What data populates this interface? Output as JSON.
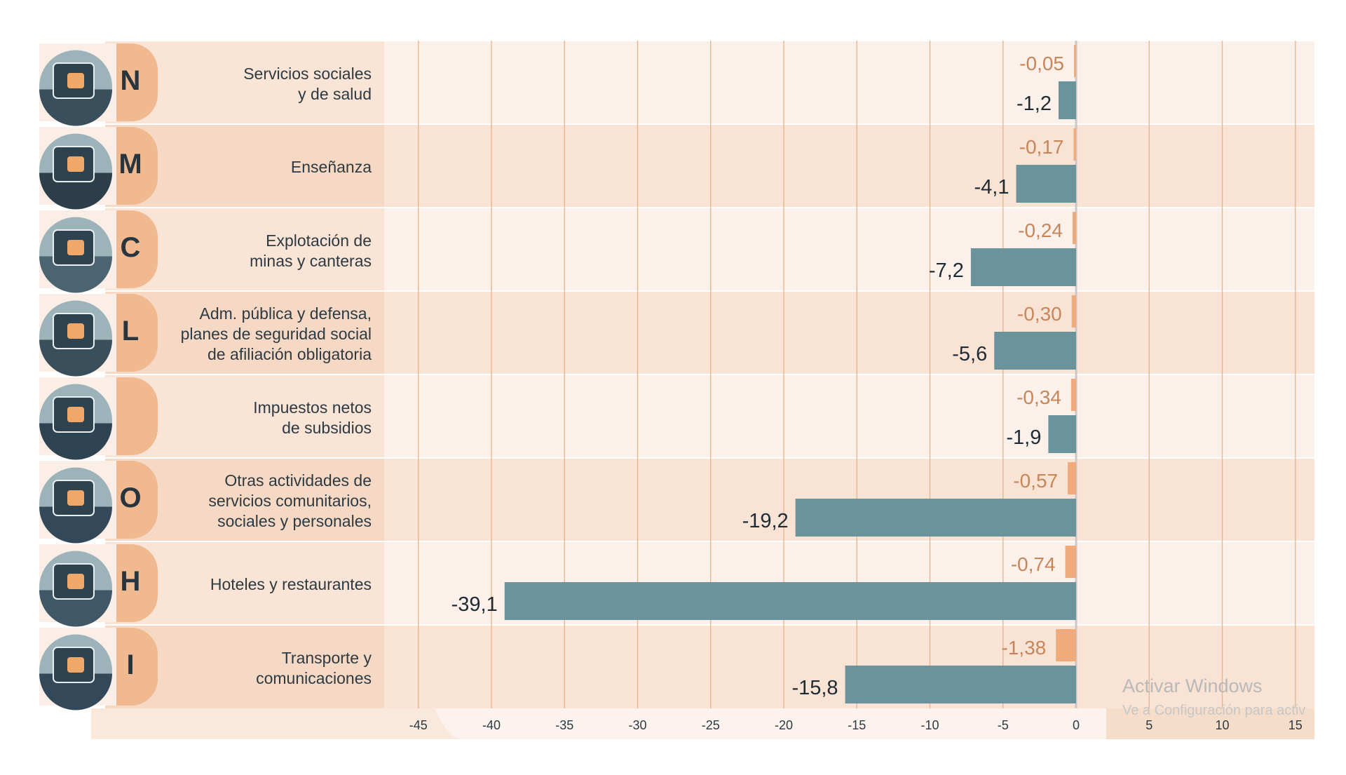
{
  "chart_data": {
    "type": "bar",
    "orientation": "horizontal",
    "title": "",
    "xlabel": "",
    "ylabel": "",
    "xlim": [
      -47,
      16
    ],
    "ticks": [
      "-45",
      "-40",
      "-35",
      "-30",
      "-25",
      "-20",
      "-15",
      "-10",
      "-5",
      "0",
      "5",
      "10",
      "15"
    ],
    "tick_values": [
      -45,
      -40,
      -35,
      -30,
      -25,
      -20,
      -15,
      -10,
      -5,
      0,
      5,
      10,
      15
    ],
    "categories": [
      {
        "letter": "N",
        "label": "Servicios sociales\ny de salud",
        "icon": "medical-kit-icon"
      },
      {
        "letter": "M",
        "label": "Enseñanza",
        "icon": "books-icon"
      },
      {
        "letter": "C",
        "label": "Explotación de\nminas y canteras",
        "icon": "oil-pump-icon"
      },
      {
        "letter": "L",
        "label": "Adm. pública y defensa,\nplanes de seguridad social\nde afiliación obligatoria",
        "icon": "congress-building-icon"
      },
      {
        "letter": "",
        "label": "Impuestos netos\nde subsidios",
        "icon": "tax-coins-icon"
      },
      {
        "letter": "O",
        "label": "Otras actividades de\nservicios comunitarios,\nsociales y personales",
        "icon": "culture-theater-icon"
      },
      {
        "letter": "H",
        "label": "Hoteles y restaurantes",
        "icon": "hotel-restaurant-icon"
      },
      {
        "letter": "I",
        "label": "Transporte y\ncomunicaciones",
        "icon": "transport-bus-icon"
      }
    ],
    "series": [
      {
        "name": "orange",
        "color": "#f0ab7c",
        "text_color": "#c6865a",
        "values": [
          -0.05,
          -0.17,
          -0.24,
          -0.3,
          -0.34,
          -0.57,
          -0.74,
          -1.38
        ],
        "labels": [
          "-0,05",
          "-0,17",
          "-0,24",
          "-0,30",
          "-0,34",
          "-0,57",
          "-0,74",
          "-1,38"
        ]
      },
      {
        "name": "teal",
        "color": "#6b939b",
        "text_color": "#1f2b33",
        "values": [
          -1.2,
          -4.1,
          -7.2,
          -5.6,
          -1.9,
          -19.2,
          -39.1,
          -15.8
        ],
        "labels": [
          "-1,2",
          "-4,1",
          "-7,2",
          "-5,6",
          "-1,9",
          "-19,2",
          "-39,1",
          "-15,8"
        ]
      }
    ]
  },
  "watermark": {
    "line1": "Activar Windows",
    "line2": "Ve a Configuración para activ"
  }
}
